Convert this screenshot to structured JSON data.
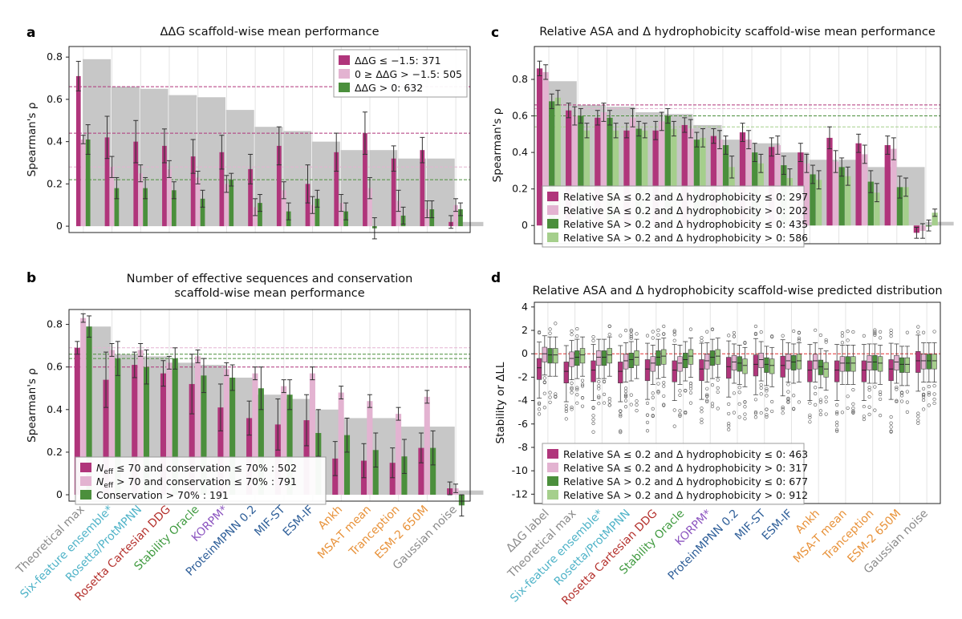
{
  "model_names": [
    "Theoretical max",
    "Six-feature ensemble*",
    "Rosetta/ProtMPNN",
    "Rosetta Cartesian DDG",
    "Stability Oracle",
    "KORPM*",
    "ProteinMPNN 0.2",
    "MIF-ST",
    "ESM-IF",
    "Ankh",
    "MSA-T mean",
    "Tranception",
    "ESM-2 650M",
    "Gaussian noise"
  ],
  "model_colors": [
    "#8a8a8a",
    "#4fb3c8",
    "#4fb3c8",
    "#b5322e",
    "#3f9a3f",
    "#8c55c0",
    "#2f5f99",
    "#2f5f99",
    "#2f5f99",
    "#e8923a",
    "#e8923a",
    "#e8923a",
    "#e8923a",
    "#8a8a8a"
  ],
  "series_colors": [
    "#b0357b",
    "#e3b3d1",
    "#4b8f3c",
    "#a5cf8c"
  ],
  "chart_data": [
    {
      "panel": "a",
      "type": "bar",
      "title": "ΔΔG scaffold-wise mean performance",
      "ylabel": "Spearman's ρ",
      "ylim": [
        -0.03,
        0.85
      ],
      "yticks": [
        "0",
        "0.2",
        "0.4",
        "0.6",
        "0.8"
      ],
      "categories": [
        "Theoretical max",
        "Six-feature ensemble*",
        "Rosetta/ProtMPNN",
        "Rosetta Cartesian DDG",
        "Stability Oracle",
        "KORPM*",
        "ProteinMPNN 0.2",
        "MIF-ST",
        "ESM-IF",
        "Ankh",
        "MSA-T mean",
        "Tranception",
        "ESM-2 650M",
        "Gaussian noise"
      ],
      "theoretical_max": [
        0.79,
        0.66,
        0.65,
        0.62,
        0.61,
        0.55,
        0.47,
        0.45,
        0.4,
        0.36,
        0.36,
        0.32,
        0.32,
        0.02
      ],
      "reference_lines": [
        0.66,
        0.44,
        0.28,
        0.22
      ],
      "series": [
        {
          "name": "ΔΔG ≤ −1.5: 371",
          "values": [
            0.71,
            0.42,
            0.4,
            0.38,
            0.33,
            0.35,
            0.27,
            0.38,
            0.2,
            0.35,
            0.44,
            0.32,
            0.36,
            0.02
          ],
          "errors": [
            0.07,
            0.1,
            0.1,
            0.08,
            0.08,
            0.08,
            0.07,
            0.09,
            0.09,
            0.09,
            0.1,
            0.06,
            0.06,
            0.03
          ]
        },
        {
          "name": "0 ≥ ΔΔG > −1.5: 505",
          "values": [
            0.41,
            0.28,
            0.25,
            0.27,
            0.23,
            0.2,
            0.09,
            0.17,
            0.1,
            0.11,
            0.18,
            0.12,
            0.08,
            0.1
          ],
          "errors": [
            0.02,
            0.05,
            0.04,
            0.04,
            0.03,
            0.04,
            0.04,
            0.04,
            0.04,
            0.04,
            0.05,
            0.05,
            0.04,
            0.03
          ]
        },
        {
          "name": "ΔΔG > 0: 632",
          "values": [
            0.41,
            0.18,
            0.18,
            0.17,
            0.13,
            0.22,
            0.11,
            0.07,
            0.13,
            0.07,
            -0.01,
            0.05,
            0.08,
            0.08
          ],
          "errors": [
            0.07,
            0.05,
            0.05,
            0.04,
            0.04,
            0.03,
            0.04,
            0.04,
            0.04,
            0.04,
            0.05,
            0.04,
            0.04,
            0.03
          ]
        }
      ]
    },
    {
      "panel": "b",
      "type": "bar",
      "title": [
        "Number of effective sequences and conservation",
        "scaffold-wise mean performance"
      ],
      "ylabel": "Spearman's ρ",
      "ylim": [
        -0.03,
        0.87
      ],
      "yticks": [
        "0",
        "0.2",
        "0.4",
        "0.6",
        "0.8"
      ],
      "categories": [
        "Theoretical max",
        "Six-feature ensemble*",
        "Rosetta/ProtMPNN",
        "Rosetta Cartesian DDG",
        "Stability Oracle",
        "KORPM*",
        "ProteinMPNN 0.2",
        "MIF-ST",
        "ESM-IF",
        "Ankh",
        "MSA-T mean",
        "Tranception",
        "ESM-2 650M",
        "Gaussian noise"
      ],
      "theoretical_max": [
        0.79,
        0.66,
        0.65,
        0.62,
        0.61,
        0.55,
        0.47,
        0.45,
        0.4,
        0.36,
        0.36,
        0.32,
        0.32,
        0.02
      ],
      "reference_lines": [
        0.69,
        0.66,
        0.64,
        0.6
      ],
      "series": [
        {
          "name": "N_eff ≤ 70 and conservation ≤ 70% : 502",
          "values": [
            0.69,
            0.54,
            0.61,
            0.57,
            0.52,
            0.41,
            0.36,
            0.33,
            0.35,
            0.17,
            0.16,
            0.15,
            0.22,
            0.03
          ],
          "errors": [
            0.03,
            0.13,
            0.06,
            0.06,
            0.14,
            0.11,
            0.08,
            0.12,
            0.12,
            0.08,
            0.08,
            0.07,
            0.07,
            0.03
          ]
        },
        {
          "name": "N_eff > 70 and conservation ≤ 70% : 791",
          "values": [
            0.83,
            0.68,
            0.68,
            0.62,
            0.65,
            0.59,
            0.57,
            0.51,
            0.57,
            0.48,
            0.44,
            0.38,
            0.46,
            0.03
          ],
          "errors": [
            0.02,
            0.03,
            0.03,
            0.03,
            0.03,
            0.03,
            0.03,
            0.03,
            0.03,
            0.03,
            0.03,
            0.03,
            0.03,
            0.02
          ]
        },
        {
          "name": "Conservation > 70% : 191",
          "values": [
            0.79,
            0.64,
            0.6,
            0.64,
            0.56,
            0.55,
            0.5,
            0.47,
            0.29,
            0.28,
            0.21,
            0.18,
            0.22,
            -0.05
          ],
          "errors": [
            0.05,
            0.08,
            0.08,
            0.05,
            0.08,
            0.06,
            0.1,
            0.07,
            0.11,
            0.08,
            0.08,
            0.08,
            0.08,
            0.05
          ]
        }
      ]
    },
    {
      "panel": "c",
      "type": "bar",
      "title": "Relative ASA and Δ hydrophobicity scaffold-wise mean performance",
      "ylabel": "Spearman's ρ",
      "ylim": [
        -0.1,
        0.98
      ],
      "yticks": [
        "0",
        "0.2",
        "0.4",
        "0.6",
        "0.8"
      ],
      "categories": [
        "Theoretical max",
        "Six-feature ensemble*",
        "Rosetta/ProtMPNN",
        "Rosetta Cartesian DDG",
        "Stability Oracle",
        "KORPM*",
        "ProteinMPNN 0.2",
        "MIF-ST",
        "ESM-IF",
        "Ankh",
        "MSA-T mean",
        "Tranception",
        "ESM-2 650M",
        "Gaussian noise"
      ],
      "theoretical_max": [
        0.79,
        0.66,
        0.65,
        0.62,
        0.61,
        0.55,
        0.47,
        0.45,
        0.4,
        0.36,
        0.36,
        0.32,
        0.32,
        0.02
      ],
      "reference_lines": [
        0.66,
        0.64,
        0.6,
        0.54
      ],
      "series": [
        {
          "name": "Relative SA ≤ 0.2 and Δ hydrophobicity ≤ 0: 297",
          "values": [
            0.86,
            0.63,
            0.59,
            0.52,
            0.52,
            0.55,
            0.49,
            0.51,
            0.43,
            0.4,
            0.48,
            0.45,
            0.44,
            -0.04
          ],
          "errors": [
            0.04,
            0.04,
            0.04,
            0.04,
            0.05,
            0.04,
            0.04,
            0.05,
            0.05,
            0.05,
            0.06,
            0.05,
            0.05,
            0.03
          ]
        },
        {
          "name": "Relative SA ≤ 0.2 and Δ hydrophobicity > 0: 202",
          "values": [
            0.84,
            0.6,
            0.62,
            0.59,
            0.57,
            0.53,
            0.47,
            0.47,
            0.44,
            0.34,
            0.35,
            0.39,
            0.42,
            -0.03
          ],
          "errors": [
            0.04,
            0.05,
            0.05,
            0.05,
            0.05,
            0.05,
            0.05,
            0.05,
            0.05,
            0.05,
            0.06,
            0.05,
            0.06,
            0.04
          ]
        },
        {
          "name": "Relative SA > 0.2 and Δ hydrophobicity ≤ 0: 435",
          "values": [
            0.68,
            0.6,
            0.59,
            0.53,
            0.6,
            0.47,
            0.44,
            0.4,
            0.33,
            0.28,
            0.32,
            0.24,
            0.21,
            0.0
          ],
          "errors": [
            0.04,
            0.04,
            0.04,
            0.04,
            0.04,
            0.04,
            0.05,
            0.05,
            0.05,
            0.05,
            0.05,
            0.06,
            0.06,
            0.03
          ]
        },
        {
          "name": "Relative SA > 0.2 and Δ hydrophobicity > 0: 586",
          "values": [
            0.7,
            0.52,
            0.52,
            0.52,
            0.53,
            0.48,
            0.32,
            0.34,
            0.26,
            0.25,
            0.27,
            0.18,
            0.21,
            0.07
          ],
          "errors": [
            0.04,
            0.04,
            0.04,
            0.04,
            0.04,
            0.05,
            0.06,
            0.05,
            0.05,
            0.05,
            0.05,
            0.05,
            0.05,
            0.02
          ]
        }
      ]
    },
    {
      "panel": "d",
      "type": "boxplot",
      "title": "Relative ASA and Δ hydrophobicity scaffold-wise predicted distribution",
      "ylabel": "Stability or ΔLL",
      "ylim": [
        -12.8,
        4.4
      ],
      "yticks": [
        "4",
        "2",
        "0",
        "-2",
        "-4",
        "-6",
        "-8",
        "-10",
        "-12"
      ],
      "categories": [
        "ΔΔG label",
        "Theoretical max",
        "Six-feature ensemble*",
        "Rosetta/ProtMPNN",
        "Rosetta Cartesian DDG",
        "Stability Oracle",
        "KORPM*",
        "ProteinMPNN 0.2",
        "MIF-ST",
        "ESM-IF",
        "Ankh",
        "MSA-T mean",
        "Tranception",
        "ESM-2 650M",
        "Gaussian noise"
      ],
      "zero_line": 0,
      "series": [
        {
          "name": "Relative SA ≤ 0.2 and Δ hydrophobicity ≤ 0: 463",
          "medians": [
            -1.2,
            -1.5,
            -1.4,
            -1.5,
            -1.3,
            -1.4,
            -1.3,
            -1.1,
            -0.9,
            -1.0,
            -1.4,
            -1.4,
            -1.4,
            -1.3,
            -0.6
          ]
        },
        {
          "name": "Relative SA ≤ 0.2 and Δ hydrophobicity > 0: 317",
          "medians": [
            0.0,
            -0.4,
            -0.3,
            -0.6,
            -0.8,
            -0.8,
            -0.6,
            -0.7,
            -0.5,
            -0.6,
            -0.6,
            -0.8,
            -0.7,
            -0.7,
            -0.6
          ]
        },
        {
          "name": "Relative SA > 0.2 and Δ hydrophobicity ≤ 0: 677",
          "medians": [
            -0.1,
            -0.3,
            -0.3,
            -0.5,
            -0.3,
            -0.5,
            -0.3,
            -0.8,
            -0.9,
            -0.7,
            -1.1,
            -0.8,
            -0.7,
            -0.9,
            -0.6
          ]
        },
        {
          "name": "Relative SA > 0.2 and Δ hydrophobicity > 0: 912",
          "medians": [
            -0.1,
            -0.1,
            -0.1,
            -0.3,
            -0.2,
            -0.2,
            -0.2,
            -1.0,
            -1.0,
            -0.6,
            -1.3,
            -0.8,
            -0.8,
            -0.9,
            -0.6
          ]
        }
      ]
    }
  ],
  "legend_b_labels": [
    {
      "sym": "N",
      "sub": "eff",
      "rest": " ≤ 70 and conservation ≤ 70% : 502"
    },
    {
      "sym": "N",
      "sub": "eff",
      "rest": " > 70 and conservation ≤ 70% : 791"
    },
    {
      "sym": "",
      "sub": "",
      "rest": "Conservation > 70% : 191"
    }
  ]
}
